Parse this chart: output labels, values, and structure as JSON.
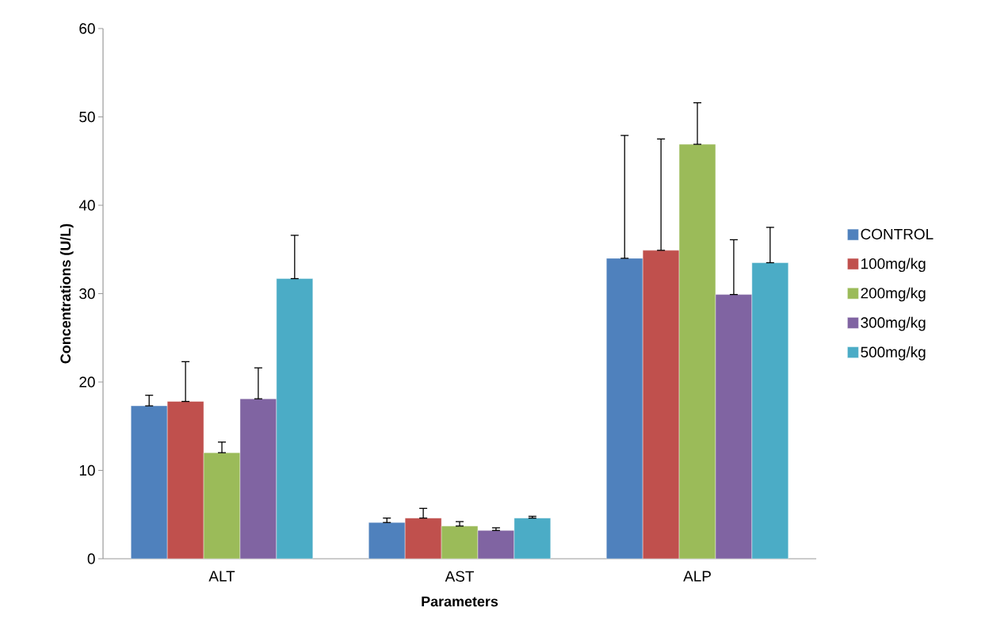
{
  "chart_data": {
    "type": "bar",
    "xlabel": "Parameters",
    "ylabel": "Concentrations (U/L)",
    "categories": [
      "ALT",
      "AST",
      "ALP"
    ],
    "series": [
      {
        "name": "CONTROL",
        "color": "#4f81bd",
        "values": [
          17.3,
          4.1,
          34.0
        ],
        "errors": [
          [
            17.3,
            18.5
          ],
          [
            4.1,
            4.6
          ],
          [
            34.0,
            47.9
          ]
        ]
      },
      {
        "name": "100mg/kg",
        "color": "#c0504d",
        "values": [
          17.8,
          4.6,
          34.9
        ],
        "errors": [
          [
            17.8,
            22.3
          ],
          [
            4.6,
            5.7
          ],
          [
            34.9,
            47.5
          ]
        ]
      },
      {
        "name": "200mg/kg",
        "color": "#9bbb59",
        "values": [
          12.0,
          3.7,
          46.9
        ],
        "errors": [
          [
            12.0,
            13.2
          ],
          [
            3.7,
            4.2
          ],
          [
            46.9,
            51.6
          ]
        ]
      },
      {
        "name": "300mg/kg",
        "color": "#8064a2",
        "values": [
          18.1,
          3.2,
          29.9
        ],
        "errors": [
          [
            18.1,
            21.6
          ],
          [
            3.2,
            3.5
          ],
          [
            29.9,
            36.1
          ]
        ]
      },
      {
        "name": "500mg/kg",
        "color": "#4bacc6",
        "values": [
          31.7,
          4.6,
          33.5
        ],
        "errors": [
          [
            31.7,
            36.6
          ],
          [
            4.6,
            4.8
          ],
          [
            33.5,
            37.5
          ]
        ]
      }
    ],
    "ylim": [
      0,
      60
    ],
    "yticks": [
      0,
      10,
      20,
      30,
      40,
      50,
      60
    ],
    "legend": "right"
  }
}
